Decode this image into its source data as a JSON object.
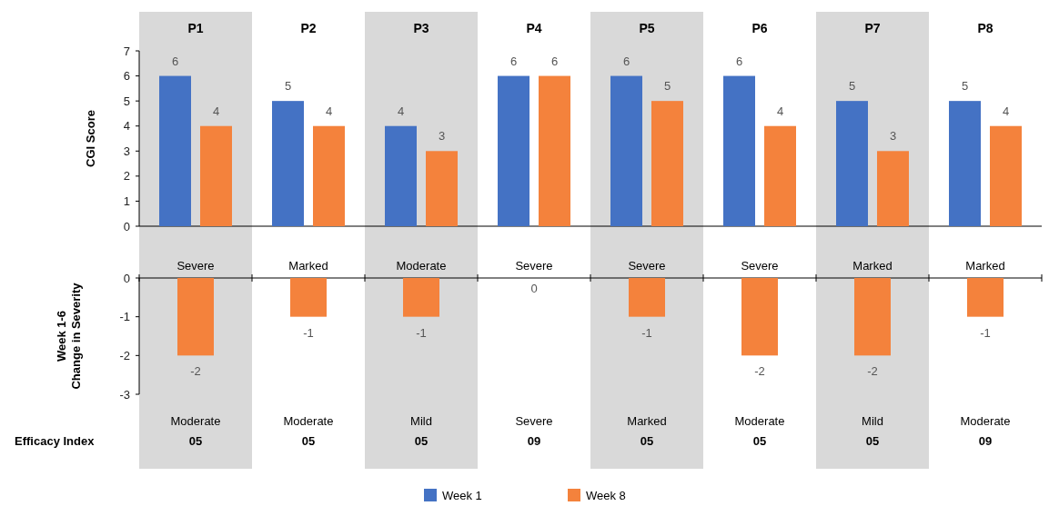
{
  "chart_data": [
    {
      "type": "bar",
      "categories": [
        "P1",
        "P2",
        "P3",
        "P4",
        "P5",
        "P6",
        "P7",
        "P8"
      ],
      "ylabel": "CGI Score",
      "ylim": [
        0,
        7
      ],
      "yticks": [
        0,
        1,
        2,
        3,
        4,
        5,
        6,
        7
      ],
      "data_labels": true,
      "legend": "bottom",
      "series": [
        {
          "name": "Week 1",
          "color": "#4472c4",
          "values": [
            6,
            5,
            4,
            6,
            6,
            6,
            5,
            5
          ]
        },
        {
          "name": "Week 8",
          "color": "#f4823c",
          "values": [
            4,
            4,
            3,
            6,
            5,
            4,
            3,
            4
          ]
        }
      ]
    },
    {
      "type": "bar",
      "categories": [
        "Moderate\n05",
        "Moderate\n05",
        "Mild\n05",
        "Severe\n09",
        "Marked\n05",
        "Moderate\n05",
        "Mild\n05",
        "Moderate\n09"
      ],
      "xlabel": "Efficacy Index",
      "ylabel": "Week 1-6\nChange in Severity",
      "ylim": [
        -3,
        0
      ],
      "yticks": [
        0,
        -1,
        -2,
        -3
      ],
      "data_labels": true,
      "annotations": [
        "Severe",
        "Marked",
        "Moderate",
        "Severe",
        "Severe",
        "Severe",
        "Marked",
        "Marked"
      ],
      "series": [
        {
          "color": "#f4823c",
          "values": [
            -2,
            -1,
            -1,
            0,
            -1,
            -2,
            -2,
            -1
          ]
        }
      ]
    }
  ]
}
